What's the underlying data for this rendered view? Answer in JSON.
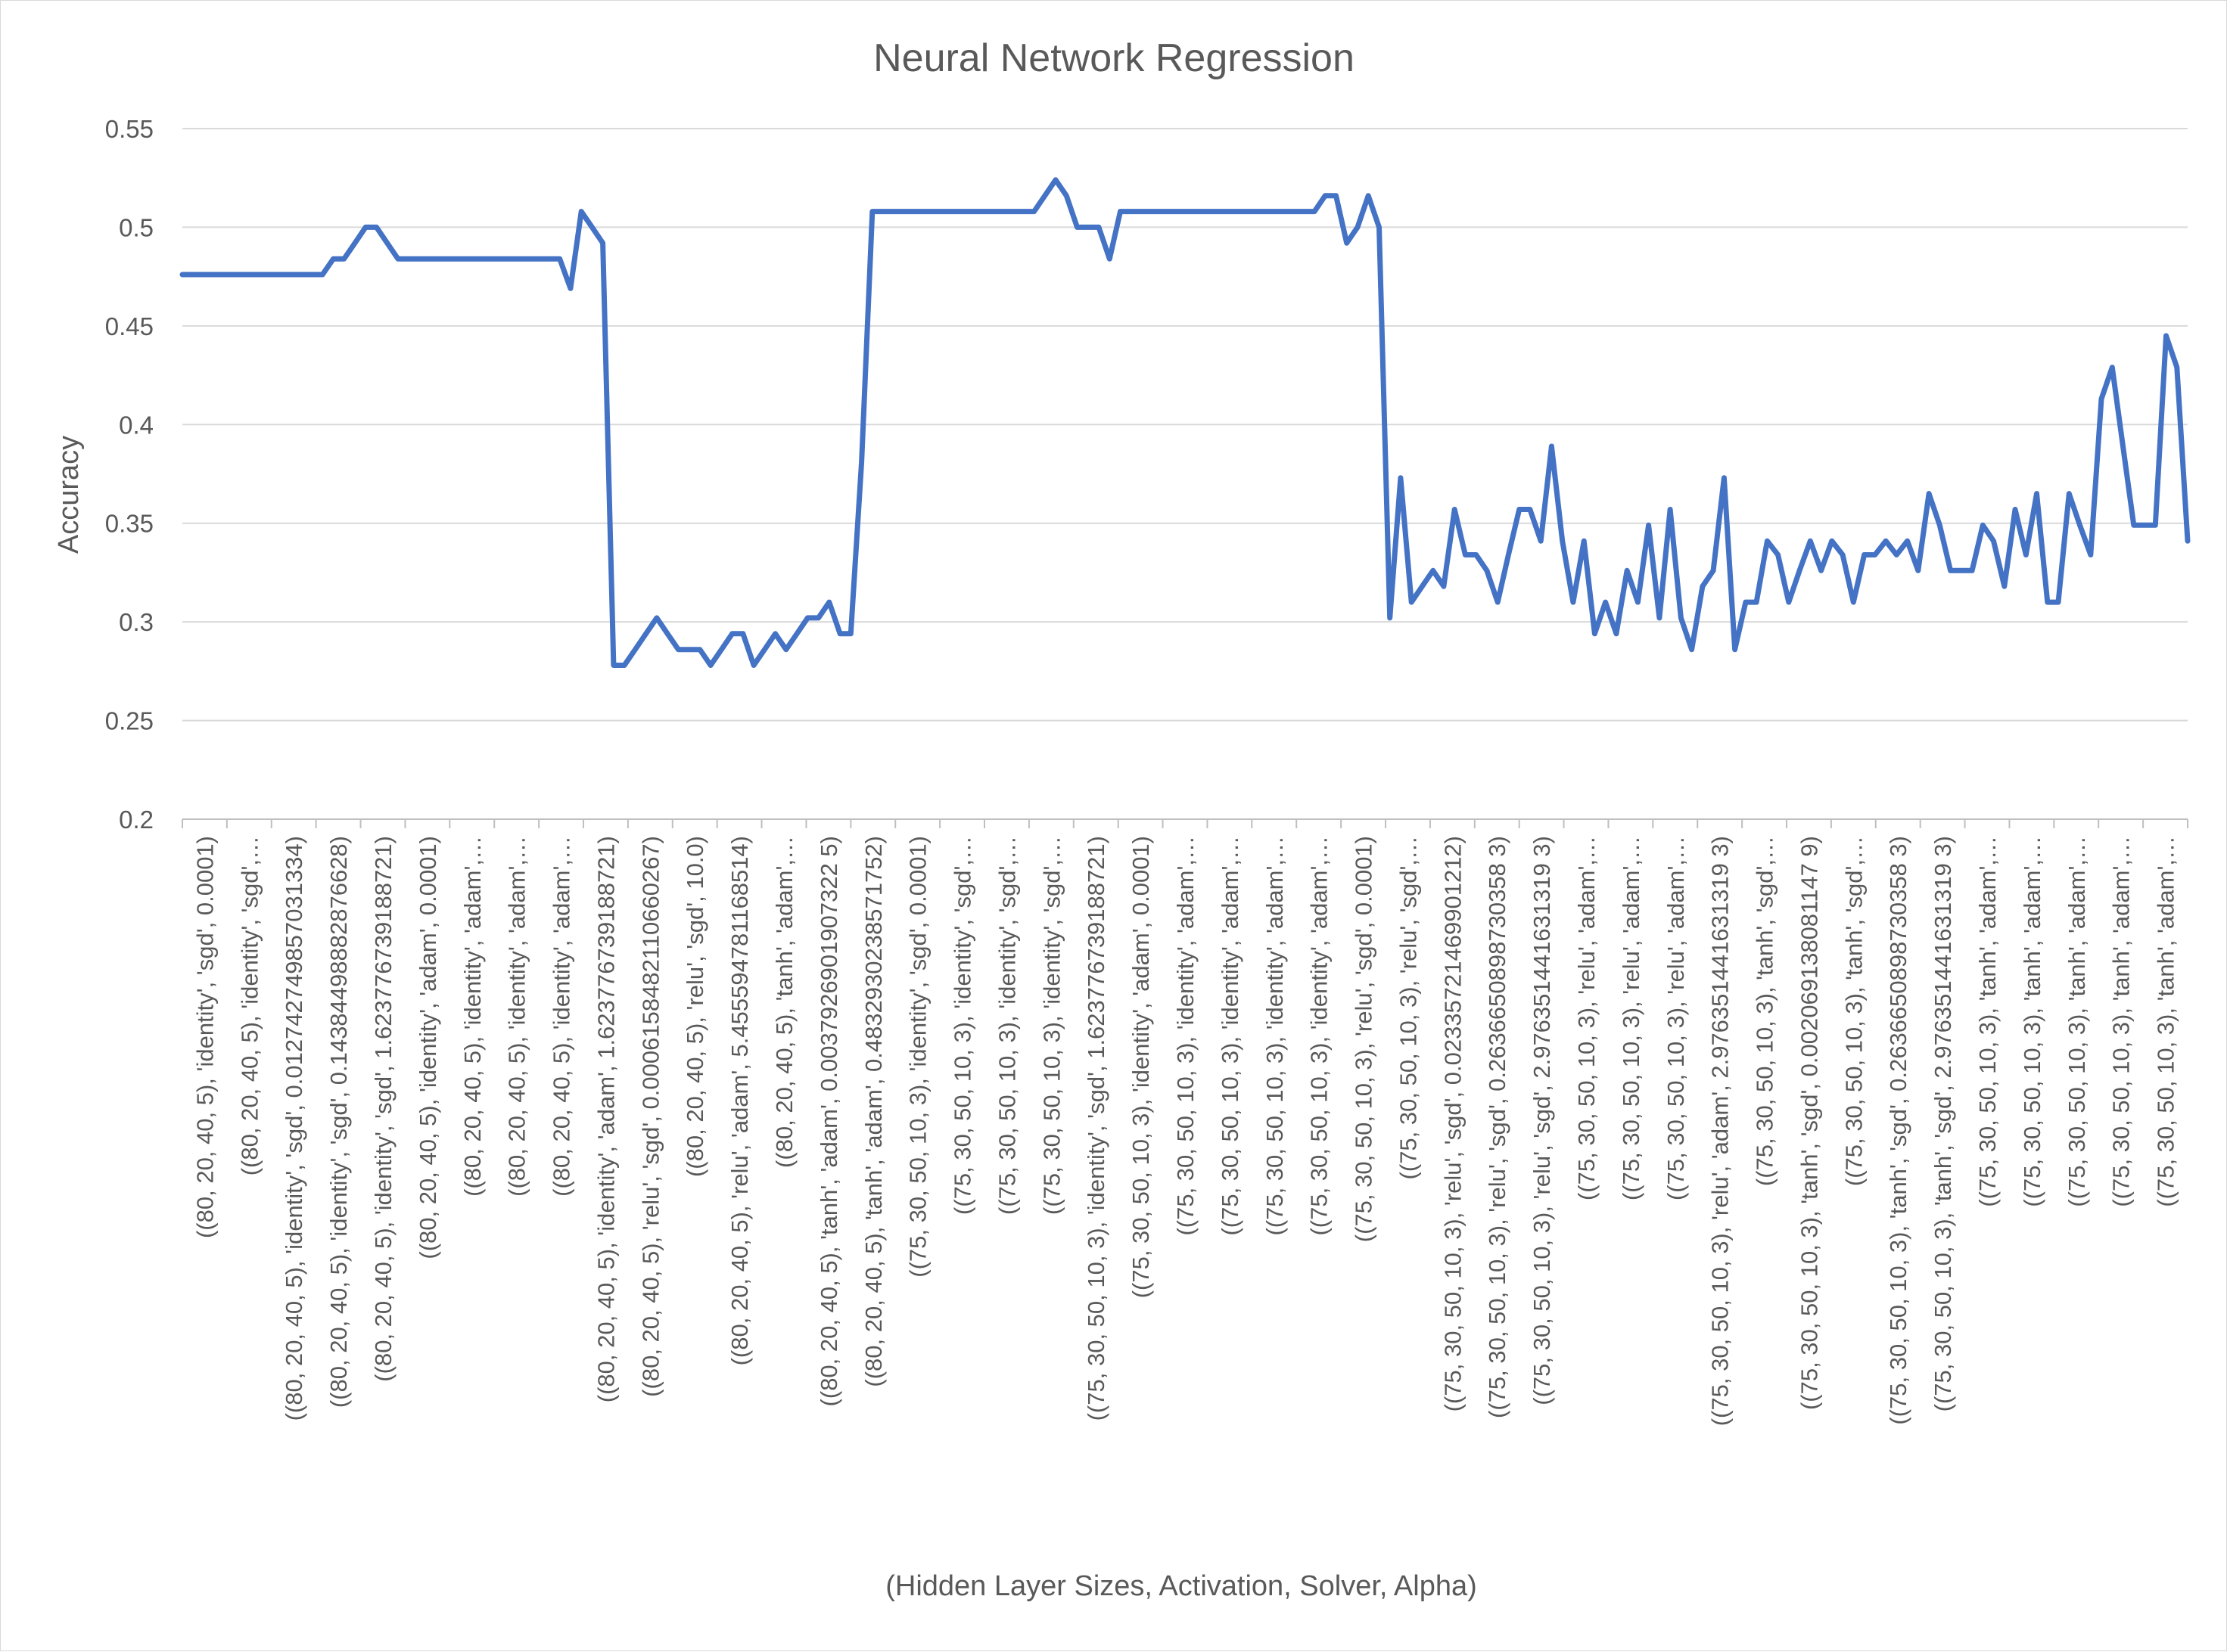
{
  "chart_data": {
    "type": "line",
    "title": "Neural Network Regression",
    "xlabel": "(Hidden Layer Sizes, Activation, Solver, Alpha)",
    "ylabel": "Accuracy",
    "ylim": [
      0.2,
      0.55
    ],
    "yticks": [
      "0.2",
      "0.25",
      "0.3",
      "0.35",
      "0.4",
      "0.45",
      "0.5",
      "0.55"
    ],
    "grid": true,
    "legend": "none",
    "x_tick_labels": [
      "((80, 20, 40, 5), 'identity', 'sgd', 0.0001)",
      "((80, 20, 40, 5), 'identity', 'sgd',…",
      "((80, 20, 40, 5), 'identity', 'sgd', 0.012742749857031334)",
      "((80, 20, 40, 5), 'identity', 'sgd', 0.14384498882876628)",
      "((80, 20, 40, 5), 'identity', 'sgd', 1.623776739188721)",
      "((80, 20, 40, 5), 'identity', 'adam', 0.0001)",
      "((80, 20, 40, 5), 'identity', 'adam',…",
      "((80, 20, 40, 5), 'identity', 'adam',…",
      "((80, 20, 40, 5), 'identity', 'adam',…",
      "((80, 20, 40, 5), 'identity', 'adam', 1.623776739188721)",
      "((80, 20, 40, 5), 'relu', 'sgd', 0.0006158482110660267)",
      "((80, 20, 40, 5), 'relu', 'sgd', 10.0)",
      "((80, 20, 40, 5), 'relu', 'adam', 5.455594781168514)",
      "((80, 20, 40, 5), 'tanh', 'adam',…",
      "((80, 20, 40, 5), 'tanh', 'adam', 0.0037926901907322 5)",
      "((80, 20, 40, 5), 'tanh', 'adam', 0.4832930238571752)",
      "((75, 30, 50, 10, 3), 'identity', 'sgd', 0.0001)",
      "((75, 30, 50, 10, 3), 'identity', 'sgd',…",
      "((75, 30, 50, 10, 3), 'identity', 'sgd',…",
      "((75, 30, 50, 10, 3), 'identity', 'sgd',…",
      "((75, 30, 50, 10, 3), 'identity', 'sgd', 1.623776739188721)",
      "((75, 30, 50, 10, 3), 'identity', 'adam', 0.0001)",
      "((75, 30, 50, 10, 3), 'identity', 'adam',…",
      "((75, 30, 50, 10, 3), 'identity', 'adam',…",
      "((75, 30, 50, 10, 3), 'identity', 'adam',…",
      "((75, 30, 50, 10, 3), 'identity', 'adam',…",
      "((75, 30, 50, 10, 3), 'relu', 'sgd', 0.0001)",
      "((75, 30, 50, 10, 3), 'relu', 'sgd',…",
      "((75, 30, 50, 10, 3), 'relu', 'sgd', 0.02335721469901212)",
      "((75, 30, 50, 10, 3), 'relu', 'sgd', 0.2636650898730358 3)",
      "((75, 30, 50, 10, 3), 'relu', 'sgd', 2.976351441631319 3)",
      "((75, 30, 50, 10, 3), 'relu', 'adam',…",
      "((75, 30, 50, 10, 3), 'relu', 'adam',…",
      "((75, 30, 50, 10, 3), 'relu', 'adam',…",
      "((75, 30, 50, 10, 3), 'relu', 'adam', 2.976351441631319 3)",
      "((75, 30, 50, 10, 3), 'tanh', 'sgd',…",
      "((75, 30, 50, 10, 3), 'tanh', 'sgd', 0.002069138081147 9)",
      "((75, 30, 50, 10, 3), 'tanh', 'sgd',…",
      "((75, 30, 50, 10, 3), 'tanh', 'sgd', 0.2636650898730358 3)",
      "((75, 30, 50, 10, 3), 'tanh', 'sgd', 2.976351441631319 3)",
      "((75, 30, 50, 10, 3), 'tanh', 'adam',…",
      "((75, 30, 50, 10, 3), 'tanh', 'adam',…",
      "((75, 30, 50, 10, 3), 'tanh', 'adam',…",
      "((75, 30, 50, 10, 3), 'tanh', 'adam',…",
      "((75, 30, 50, 10, 3), 'tanh', 'adam',…"
    ],
    "series": [
      {
        "color": "#4472c4",
        "values": [
          0.476,
          0.476,
          0.476,
          0.476,
          0.476,
          0.476,
          0.476,
          0.476,
          0.476,
          0.476,
          0.476,
          0.476,
          0.476,
          0.476,
          0.484,
          0.484,
          0.492,
          0.5,
          0.5,
          0.492,
          0.484,
          0.484,
          0.484,
          0.484,
          0.484,
          0.484,
          0.484,
          0.484,
          0.484,
          0.484,
          0.484,
          0.484,
          0.484,
          0.484,
          0.484,
          0.484,
          0.469,
          0.508,
          0.5,
          0.492,
          0.278,
          0.278,
          0.286,
          0.294,
          0.302,
          0.294,
          0.286,
          0.286,
          0.286,
          0.278,
          0.286,
          0.294,
          0.294,
          0.278,
          0.286,
          0.294,
          0.286,
          0.294,
          0.302,
          0.302,
          0.31,
          0.294,
          0.294,
          0.381,
          0.508,
          0.508,
          0.508,
          0.508,
          0.508,
          0.508,
          0.508,
          0.508,
          0.508,
          0.508,
          0.508,
          0.508,
          0.508,
          0.508,
          0.508,
          0.508,
          0.516,
          0.524,
          0.516,
          0.5,
          0.5,
          0.5,
          0.484,
          0.508,
          0.508,
          0.508,
          0.508,
          0.508,
          0.508,
          0.508,
          0.508,
          0.508,
          0.508,
          0.508,
          0.508,
          0.508,
          0.508,
          0.508,
          0.508,
          0.508,
          0.508,
          0.508,
          0.516,
          0.516,
          0.492,
          0.5,
          0.516,
          0.5,
          0.302,
          0.373,
          0.31,
          0.318,
          0.326,
          0.318,
          0.357,
          0.334,
          0.334,
          0.326,
          0.31,
          0.334,
          0.357,
          0.357,
          0.341,
          0.389,
          0.341,
          0.31,
          0.341,
          0.294,
          0.31,
          0.294,
          0.326,
          0.31,
          0.349,
          0.302,
          0.357,
          0.302,
          0.286,
          0.318,
          0.326,
          0.373,
          0.286,
          0.31,
          0.31,
          0.341,
          0.334,
          0.31,
          0.326,
          0.341,
          0.326,
          0.341,
          0.334,
          0.31,
          0.334,
          0.334,
          0.341,
          0.334,
          0.341,
          0.326,
          0.365,
          0.349,
          0.326,
          0.326,
          0.326,
          0.349,
          0.341,
          0.318,
          0.357,
          0.334,
          0.365,
          0.31,
          0.31,
          0.365,
          0.349,
          0.334,
          0.413,
          0.429,
          0.389,
          0.349,
          0.349,
          0.349,
          0.445,
          0.429,
          0.341
        ]
      }
    ]
  }
}
